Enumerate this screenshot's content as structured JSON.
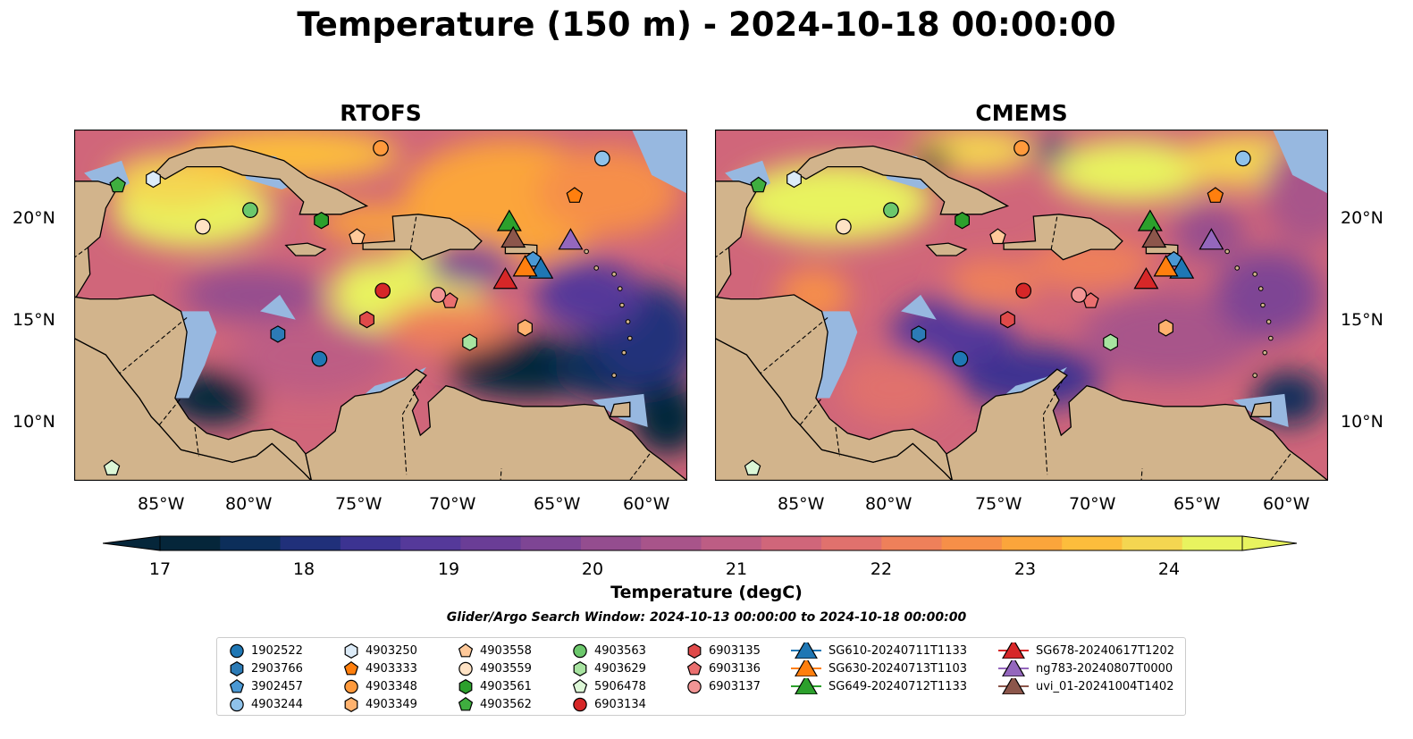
{
  "title": "Temperature (150 m) - 2024-10-18 00:00:00",
  "panels": [
    {
      "id": "rtofs",
      "title": "RTOFS"
    },
    {
      "id": "cmems",
      "title": "CMEMS"
    }
  ],
  "axes": {
    "lon_ticks": [
      "85°W",
      "80°W",
      "75°W",
      "70°W",
      "65°W",
      "60°W"
    ],
    "lat_ticks": [
      "20°N",
      "15°N",
      "10°N"
    ],
    "lon_range": [
      -89,
      -58
    ],
    "lat_range": [
      7,
      24
    ]
  },
  "colorbar": {
    "label": "Temperature (degC)",
    "ticks": [
      "17",
      "18",
      "19",
      "20",
      "21",
      "22",
      "23",
      "24"
    ],
    "range": [
      17,
      24.5
    ],
    "colors": [
      "#05263a",
      "#0c2e5a",
      "#20307a",
      "#3c3391",
      "#55399a",
      "#6a3d96",
      "#7e4594",
      "#944d8f",
      "#a8548a",
      "#bd5d84",
      "#d0667a",
      "#e0716d",
      "#ee805a",
      "#f68f48",
      "#fba53b",
      "#fcbd3c",
      "#f4d651",
      "#e8f35f"
    ]
  },
  "search_window": "Glider/Argo Search Window: 2024-10-13 00:00:00 to 2024-10-18 00:00:00",
  "land_color": "#d2b48c",
  "shelf_color": "#97b8e0",
  "legend": [
    {
      "label": "1902522",
      "marker": "circle",
      "color": "#1f77b4"
    },
    {
      "label": "2903766",
      "marker": "hexagon",
      "color": "#2c7bb6"
    },
    {
      "label": "3902457",
      "marker": "pentagon",
      "color": "#4a98d4"
    },
    {
      "label": "4903244",
      "marker": "circle",
      "color": "#8fc2ea"
    },
    {
      "label": "4903250",
      "marker": "hexagon",
      "color": "#dcebf8"
    },
    {
      "label": "4903333",
      "marker": "pentagon",
      "color": "#ff7f0e"
    },
    {
      "label": "4903348",
      "marker": "circle",
      "color": "#ff9a3c"
    },
    {
      "label": "4903349",
      "marker": "hexagon",
      "color": "#ffb26e"
    },
    {
      "label": "4903558",
      "marker": "pentagon",
      "color": "#ffc99a"
    },
    {
      "label": "4903559",
      "marker": "circle",
      "color": "#ffe2c4"
    },
    {
      "label": "4903561",
      "marker": "hexagon",
      "color": "#2ca02c"
    },
    {
      "label": "4903562",
      "marker": "pentagon",
      "color": "#3fae3f"
    },
    {
      "label": "4903563",
      "marker": "circle",
      "color": "#6cc86c"
    },
    {
      "label": "4903629",
      "marker": "hexagon",
      "color": "#a7e3a0"
    },
    {
      "label": "5906478",
      "marker": "pentagon",
      "color": "#dcf6d6"
    },
    {
      "label": "6903134",
      "marker": "circle",
      "color": "#d62728"
    },
    {
      "label": "6903135",
      "marker": "hexagon",
      "color": "#e04a4a"
    },
    {
      "label": "6903136",
      "marker": "pentagon",
      "color": "#ea6f6f"
    },
    {
      "label": "6903137",
      "marker": "circle",
      "color": "#f29595"
    },
    {
      "label": "SG610-20240711T1133",
      "marker": "triangle",
      "color": "#1f77b4"
    },
    {
      "label": "SG630-20240713T1103",
      "marker": "triangle",
      "color": "#ff7f0e"
    },
    {
      "label": "SG649-20240712T1133",
      "marker": "triangle",
      "color": "#2ca02c"
    },
    {
      "label": "SG678-20240617T1202",
      "marker": "triangle",
      "color": "#d62728"
    },
    {
      "label": "ng783-20240807T0000",
      "marker": "triangle",
      "color": "#9467bd"
    },
    {
      "label": "uvi_01-20241004T1402",
      "marker": "triangle",
      "color": "#8c564b"
    }
  ],
  "observations": [
    {
      "label": "1902522",
      "lon": -76.6,
      "lat": 12.9
    },
    {
      "label": "2903766",
      "lon": -78.7,
      "lat": 14.1
    },
    {
      "label": "3902457",
      "lon": -65.8,
      "lat": 17.7
    },
    {
      "label": "4903244",
      "lon": -62.3,
      "lat": 22.6
    },
    {
      "label": "4903250",
      "lon": -85.0,
      "lat": 21.6
    },
    {
      "label": "4903333",
      "lon": -63.7,
      "lat": 20.8
    },
    {
      "label": "4903348",
      "lon": -73.5,
      "lat": 23.1
    },
    {
      "label": "4903349",
      "lon": -66.2,
      "lat": 14.4
    },
    {
      "label": "4903558",
      "lon": -74.7,
      "lat": 18.8
    },
    {
      "label": "4903559",
      "lon": -82.5,
      "lat": 19.3
    },
    {
      "label": "4903561",
      "lon": -76.5,
      "lat": 19.6
    },
    {
      "label": "4903562",
      "lon": -86.8,
      "lat": 21.3
    },
    {
      "label": "4903563",
      "lon": -80.1,
      "lat": 20.1
    },
    {
      "label": "4903629",
      "lon": -69.0,
      "lat": 13.7
    },
    {
      "label": "5906478",
      "lon": -87.1,
      "lat": 7.6
    },
    {
      "label": "6903134",
      "lon": -73.4,
      "lat": 16.2
    },
    {
      "label": "6903135",
      "lon": -74.2,
      "lat": 14.8
    },
    {
      "label": "6903136",
      "lon": -70.0,
      "lat": 15.7
    },
    {
      "label": "6903137",
      "lon": -70.6,
      "lat": 16.0
    },
    {
      "label": "SG610-20240711T1133",
      "lon": -65.4,
      "lat": 17.2
    },
    {
      "label": "SG630-20240713T1103",
      "lon": -66.2,
      "lat": 17.3
    },
    {
      "label": "SG649-20240712T1133",
      "lon": -67.0,
      "lat": 19.5
    },
    {
      "label": "SG678-20240617T1202",
      "lon": -67.2,
      "lat": 16.7
    },
    {
      "label": "ng783-20240807T0000",
      "lon": -63.9,
      "lat": 18.6
    },
    {
      "label": "uvi_01-20241004T1402",
      "lon": -66.8,
      "lat": 18.7
    }
  ]
}
